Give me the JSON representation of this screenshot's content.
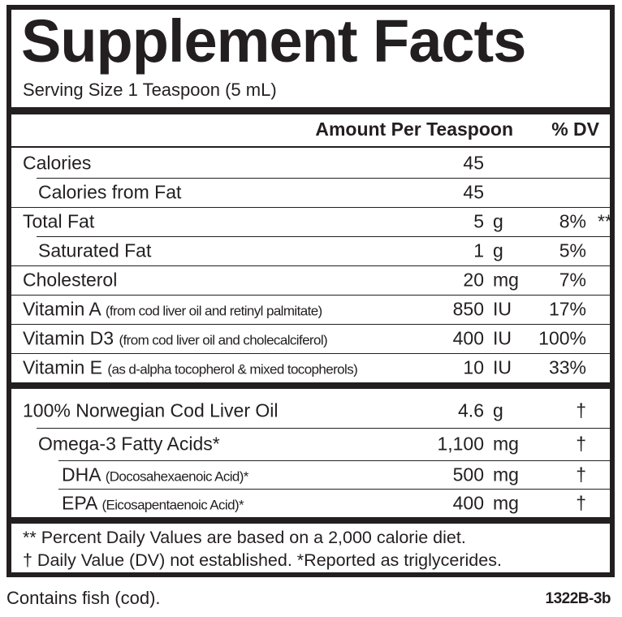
{
  "title": "Supplement Facts",
  "serving": "Serving Size 1 Teaspoon (5 mL)",
  "header": {
    "amount": "Amount Per Teaspoon",
    "dv": "% DV"
  },
  "rows": [
    {
      "name": "Calories",
      "amount": "45",
      "level": 0
    },
    {
      "name": "Calories from Fat",
      "amount": "45",
      "level": 1
    },
    {
      "name": "Total Fat",
      "amount": "5",
      "unit": "g",
      "dv": "8%",
      "dv_mark": "**",
      "level": 0
    },
    {
      "name": "Saturated Fat",
      "amount": "1",
      "unit": "g",
      "dv": "5%",
      "level": 1
    },
    {
      "name": "Cholesterol",
      "amount": "20",
      "unit": "mg",
      "dv": "7%",
      "level": 0
    },
    {
      "name": "Vitamin A",
      "note": "(from cod liver oil and retinyl palmitate)",
      "amount": "850",
      "unit": "IU",
      "dv": "17%",
      "level": 0
    },
    {
      "name": "Vitamin D3",
      "note": "(from cod liver oil and cholecalciferol)",
      "amount": "400",
      "unit": "IU",
      "dv": "100%",
      "level": 0
    },
    {
      "name": "Vitamin E",
      "note": "(as d-alpha tocopherol & mixed tocopherols)",
      "amount": "10",
      "unit": "IU",
      "dv": "33%",
      "level": 0
    }
  ],
  "rows2": [
    {
      "name": "100% Norwegian Cod Liver Oil",
      "amount": "4.6",
      "unit": "g",
      "dv": "†",
      "level": 0
    },
    {
      "name": "Omega-3 Fatty Acids*",
      "amount": "1,100",
      "unit": "mg",
      "dv": "†",
      "level": 1
    },
    {
      "name": "DHA",
      "note": "(Docosahexaenoic Acid)*",
      "amount": "500",
      "unit": "mg",
      "dv": "†",
      "level": 2
    },
    {
      "name": "EPA",
      "note": "(Eicosapentaenoic Acid)*",
      "amount": "400",
      "unit": "mg",
      "dv": "†",
      "level": 2
    }
  ],
  "footnotes": [
    "** Percent Daily Values are based on a 2,000 calorie diet.",
    "† Daily Value (DV) not established. *Reported as triglycerides."
  ],
  "allergen": "Contains fish (cod).",
  "code": "1322B-3b"
}
